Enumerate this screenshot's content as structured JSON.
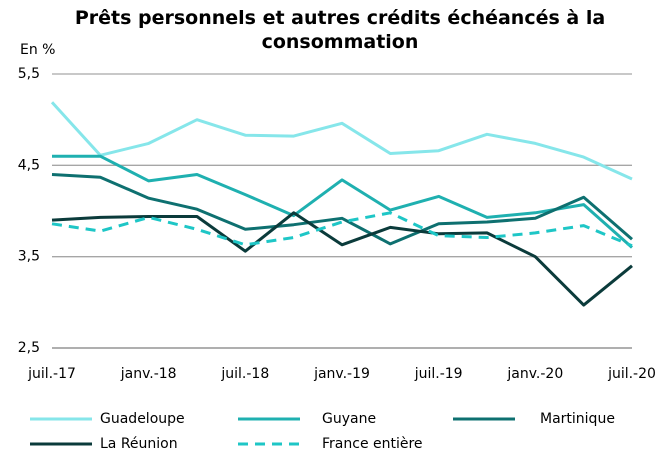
{
  "chart_data": {
    "type": "line",
    "title": "Prêts personnels et autres crédits échéancés à la consommation",
    "y_label": "En %",
    "categories": [
      "juil.-17",
      null,
      "janv.-18",
      null,
      "juil.-18",
      null,
      "janv.-19",
      null,
      "juil.-19",
      null,
      "janv.-20",
      null,
      "juil.-20"
    ],
    "series": [
      {
        "name": "Guadeloupe",
        "color": "#86e6ea",
        "dashed": false,
        "values": [
          5.19,
          4.61,
          4.74,
          5.0,
          4.83,
          4.82,
          4.96,
          4.63,
          4.66,
          4.84,
          4.74,
          4.59,
          4.35
        ]
      },
      {
        "name": "Guyane",
        "color": "#1fb0b0",
        "dashed": false,
        "values": [
          4.6,
          4.6,
          4.33,
          4.4,
          4.18,
          3.95,
          4.34,
          4.01,
          4.16,
          3.93,
          3.98,
          4.07,
          3.6
        ]
      },
      {
        "name": "Martinique",
        "color": "#0e7070",
        "dashed": false,
        "values": [
          4.4,
          4.37,
          4.14,
          4.02,
          3.8,
          3.85,
          3.92,
          3.64,
          3.86,
          3.88,
          3.92,
          4.15,
          3.69
        ]
      },
      {
        "name": "La Réunion",
        "color": "#0b3b3b",
        "dashed": false,
        "values": [
          3.9,
          3.93,
          3.94,
          3.94,
          3.56,
          3.98,
          3.63,
          3.82,
          3.75,
          3.76,
          3.5,
          2.97,
          3.4
        ]
      },
      {
        "name": "France entière",
        "color": "#1ec6c6",
        "dashed": true,
        "values": [
          3.86,
          3.78,
          3.93,
          3.8,
          3.63,
          3.71,
          3.88,
          3.98,
          3.73,
          3.71,
          3.76,
          3.84,
          3.62
        ]
      }
    ],
    "ylim": [
      2.5,
      5.5
    ],
    "yticks": [
      {
        "value": 2.5,
        "label": "2,5"
      },
      {
        "value": 3.5,
        "label": "3,5"
      },
      {
        "value": 4.5,
        "label": "4,5"
      },
      {
        "value": 5.5,
        "label": "5,5"
      }
    ],
    "grid": true,
    "legend": "bottom"
  }
}
